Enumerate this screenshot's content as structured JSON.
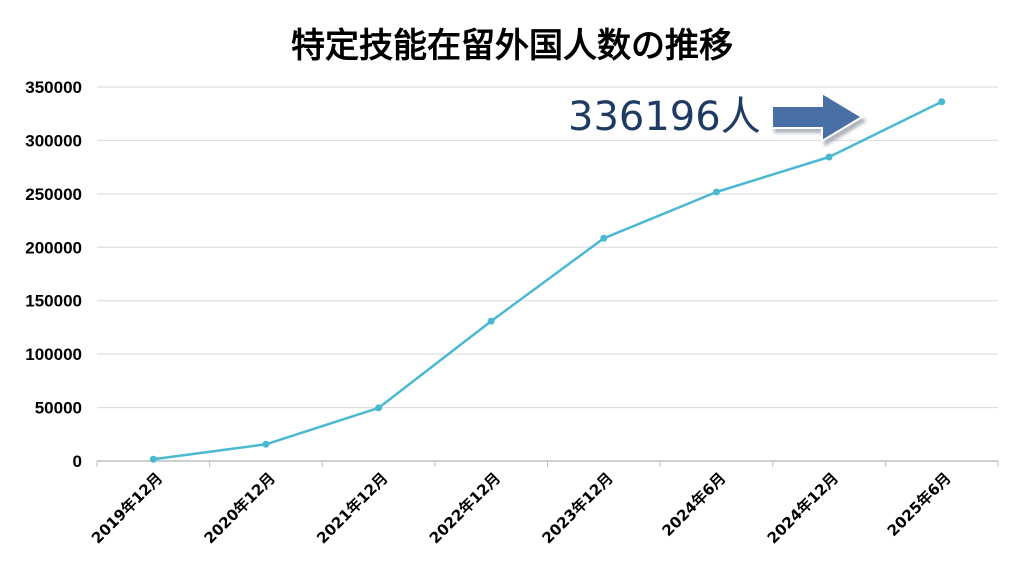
{
  "chart_data": {
    "type": "line",
    "title": "特定技能在留外国人数の推移",
    "xlabel": "",
    "ylabel": "",
    "categories": [
      "2019年12月",
      "2020年12月",
      "2021年12月",
      "2022年12月",
      "2023年12月",
      "2024年6月",
      "2024年12月",
      "2025年6月"
    ],
    "series": [
      {
        "values": [
          1621,
          15663,
          49666,
          130923,
          208425,
          251747,
          284466,
          336196
        ],
        "color": "#4bb8d2"
      }
    ],
    "ylim": [
      0,
      350000
    ],
    "yticks": [
      "0",
      "50000",
      "100000",
      "150000",
      "200000",
      "250000",
      "300000",
      "350000"
    ],
    "grid": true,
    "legend": "none",
    "annotation": {
      "text": "336196人",
      "icon": "right-arrow-icon",
      "arrow_color": "#4a6fa5"
    }
  }
}
